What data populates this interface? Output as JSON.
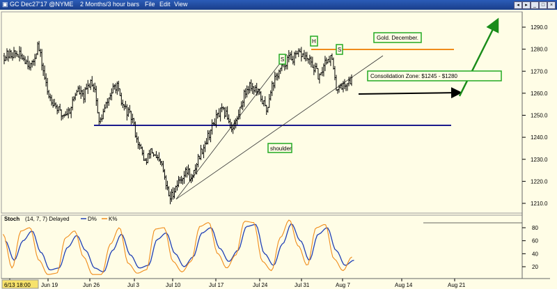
{
  "window": {
    "title": "GC Dec27'17 @NYME",
    "timeframe": "2 Months/3 hour bars",
    "menu": [
      "File",
      "Edit",
      "View"
    ]
  },
  "colors": {
    "background": "#fffde6",
    "bars": "#000000",
    "support_line": "#1a1a8c",
    "resistance_line": "#f08c1a",
    "arrow": "#1a8c1a",
    "label_border": "#22aa22",
    "stoch_d": "#1f3fb5",
    "stoch_k": "#f08c1a"
  },
  "chart_data": [
    {
      "type": "ohlc",
      "x_ticks": [
        "6/13 18:00",
        "Jun 19",
        "Jun 26",
        "Jul 3",
        "Jul 10",
        "Jul 17",
        "Jul 24",
        "Jul 31",
        "Aug 7",
        "Aug 14",
        "Aug 21"
      ],
      "y_ticks": [
        1210,
        1220,
        1230,
        1240,
        1250,
        1260,
        1270,
        1280,
        1290
      ],
      "ylim": [
        1204,
        1296
      ],
      "close_path": [
        [
          0,
          1277
        ],
        [
          6,
          1278
        ],
        [
          10,
          1276
        ],
        [
          14,
          1272
        ],
        [
          17,
          1282
        ],
        [
          19,
          1274
        ],
        [
          22,
          1260
        ],
        [
          25,
          1256
        ],
        [
          29,
          1250
        ],
        [
          33,
          1252
        ],
        [
          37,
          1262
        ],
        [
          40,
          1258
        ],
        [
          44,
          1266
        ],
        [
          46,
          1262
        ],
        [
          48,
          1246
        ],
        [
          51,
          1253
        ],
        [
          54,
          1260
        ],
        [
          57,
          1264
        ],
        [
          59,
          1256
        ],
        [
          62,
          1252
        ],
        [
          65,
          1248
        ],
        [
          67,
          1240
        ],
        [
          70,
          1232
        ],
        [
          72,
          1228
        ],
        [
          74,
          1235
        ],
        [
          77,
          1230
        ],
        [
          80,
          1227
        ],
        [
          82,
          1218
        ],
        [
          84,
          1212
        ],
        [
          87,
          1218
        ],
        [
          90,
          1222
        ],
        [
          93,
          1225
        ],
        [
          95,
          1220
        ],
        [
          98,
          1230
        ],
        [
          101,
          1236
        ],
        [
          104,
          1242
        ],
        [
          107,
          1248
        ],
        [
          110,
          1252
        ],
        [
          113,
          1250
        ],
        [
          115,
          1244
        ],
        [
          118,
          1248
        ],
        [
          121,
          1258
        ],
        [
          124,
          1264
        ],
        [
          127,
          1262
        ],
        [
          130,
          1258
        ],
        [
          133,
          1252
        ],
        [
          135,
          1262
        ],
        [
          138,
          1268
        ],
        [
          141,
          1272
        ],
        [
          144,
          1276
        ],
        [
          147,
          1276
        ],
        [
          150,
          1278
        ],
        [
          153,
          1276
        ],
        [
          155,
          1274
        ],
        [
          158,
          1270
        ],
        [
          160,
          1266
        ],
        [
          162,
          1274
        ],
        [
          164,
          1276
        ],
        [
          166,
          1276
        ],
        [
          168,
          1262
        ],
        [
          170,
          1264
        ],
        [
          172,
          1263
        ],
        [
          174,
          1265
        ],
        [
          176,
          1266
        ]
      ]
    },
    {
      "type": "line",
      "title": "Stoch",
      "params": "(14, 7, 7) Delayed",
      "legend": [
        "D%",
        "K%"
      ],
      "y_ticks": [
        20,
        40,
        60,
        80
      ],
      "ylim": [
        6,
        92
      ]
    }
  ],
  "annotations": {
    "gold_label": "Gold. December.",
    "consolidation_label": "Consolidation Zone: $1245 - $1280",
    "shoulder_label": "shoulder",
    "head_label": "H",
    "left_shoulder_label": "S",
    "right_shoulder_label": "S"
  },
  "stoch_d": [
    60,
    30,
    60,
    75,
    42,
    15,
    18,
    50,
    68,
    45,
    18,
    12,
    45,
    70,
    38,
    18,
    22,
    62,
    72,
    40,
    20,
    35,
    72,
    80,
    48,
    28,
    45,
    82,
    85,
    40,
    22,
    55,
    86,
    60,
    30,
    70,
    80,
    45,
    22,
    30
  ],
  "stoch_k": [
    70,
    18,
    75,
    80,
    30,
    8,
    10,
    65,
    75,
    35,
    8,
    8,
    55,
    80,
    25,
    10,
    15,
    78,
    80,
    28,
    12,
    28,
    82,
    88,
    40,
    18,
    38,
    90,
    88,
    28,
    14,
    65,
    92,
    52,
    22,
    80,
    85,
    32,
    14,
    35
  ]
}
